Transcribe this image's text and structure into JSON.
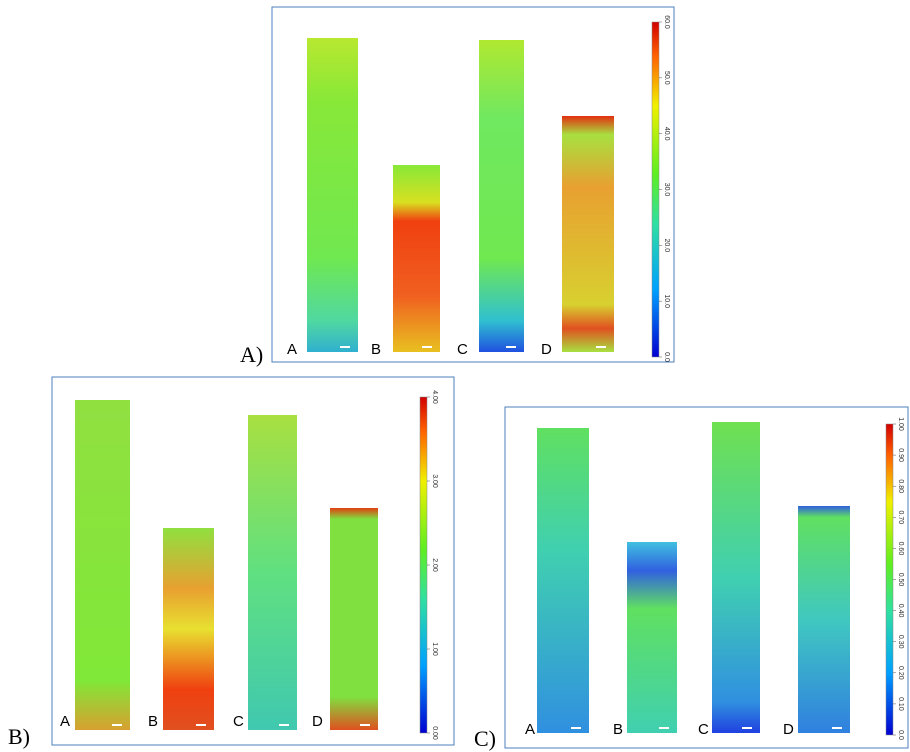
{
  "panels": [
    {
      "label": "A)",
      "strips": [
        "A",
        "B",
        "C",
        "D"
      ],
      "colorbar_ticks": [
        "0.0",
        "10.0",
        "20.0",
        "30.0",
        "40.0",
        "50.0",
        "60.0"
      ]
    },
    {
      "label": "B)",
      "strips": [
        "A",
        "B",
        "C",
        "D"
      ],
      "colorbar_ticks": [
        "0.00",
        "1.00",
        "2.00",
        "3.00",
        "4.00"
      ]
    },
    {
      "label": "C)",
      "strips": [
        "A",
        "B",
        "C",
        "D"
      ],
      "colorbar_ticks": [
        "0.0",
        "0.10",
        "0.20",
        "0.30",
        "0.40",
        "0.50",
        "0.60",
        "0.70",
        "0.80",
        "0.90",
        "1.00"
      ]
    }
  ]
}
